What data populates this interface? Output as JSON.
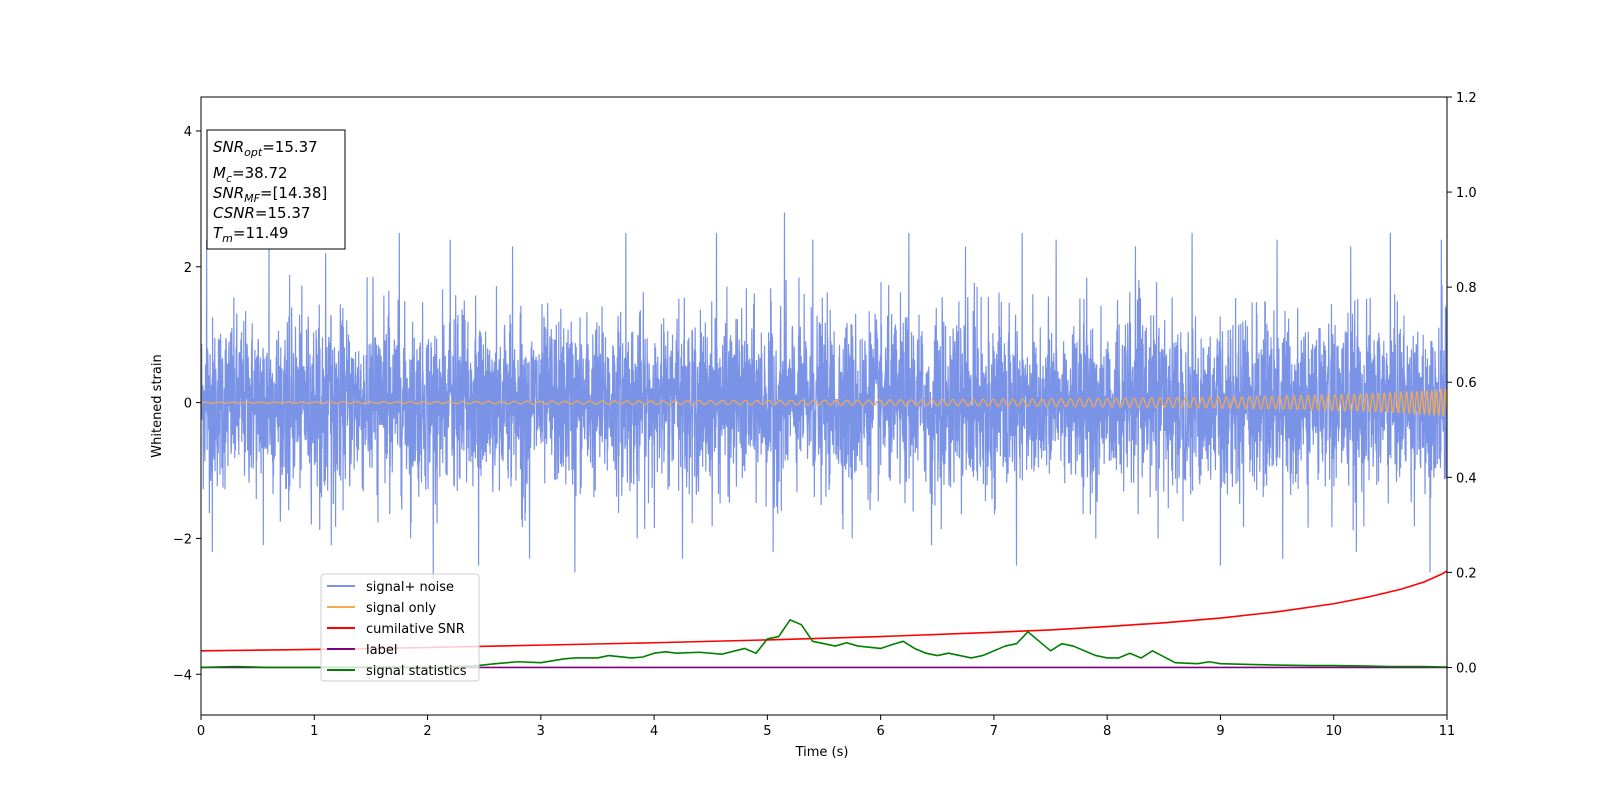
{
  "chart_data": {
    "type": "line",
    "xlabel": "Time (s)",
    "ylabel": "Whitened strain",
    "xlim": [
      0,
      11
    ],
    "ylim": [
      -4.6,
      4.5
    ],
    "y2lim": [
      -0.1,
      1.2
    ],
    "x_ticks": [
      "0",
      "1",
      "2",
      "3",
      "4",
      "5",
      "6",
      "7",
      "8",
      "9",
      "10",
      "11"
    ],
    "y_ticks": [
      "4",
      "2",
      "0",
      "−2",
      "−4"
    ],
    "y2_ticks": [
      "1.2",
      "1.0",
      "0.8",
      "0.6",
      "0.4",
      "0.2",
      "0.0"
    ],
    "grid": false,
    "legend_position": "lower-left",
    "series": [
      {
        "name": "signal+ noise",
        "axis": "left",
        "color": "#7b93e6",
        "style": "noise",
        "envelope_upper_typical": 1.3,
        "envelope_lower_typical": -1.4,
        "spikes": [
          [
            0.05,
            2.4
          ],
          [
            0.6,
            2.3
          ],
          [
            1.1,
            2.2
          ],
          [
            1.75,
            2.5
          ],
          [
            2.2,
            2.4
          ],
          [
            2.75,
            2.3
          ],
          [
            3.3,
            2.3
          ],
          [
            3.75,
            2.5
          ],
          [
            4.25,
            2.3
          ],
          [
            4.55,
            2.5
          ],
          [
            5.15,
            2.8
          ],
          [
            5.4,
            2.4
          ],
          [
            6.25,
            2.5
          ],
          [
            6.75,
            2.3
          ],
          [
            7.25,
            2.5
          ],
          [
            7.55,
            2.4
          ],
          [
            8.25,
            2.3
          ],
          [
            8.75,
            2.5
          ],
          [
            9.5,
            2.4
          ],
          [
            10.15,
            2.3
          ],
          [
            10.5,
            2.5
          ],
          [
            10.95,
            2.4
          ],
          [
            0.1,
            -2.2
          ],
          [
            0.55,
            -2.1
          ],
          [
            1.15,
            -2.1
          ],
          [
            1.85,
            -2.0
          ],
          [
            2.05,
            -2.6
          ],
          [
            2.45,
            -2.4
          ],
          [
            2.9,
            -2.3
          ],
          [
            3.3,
            -2.5
          ],
          [
            3.85,
            -2.0
          ],
          [
            4.25,
            -2.3
          ],
          [
            5.05,
            -2.2
          ],
          [
            5.75,
            -2.0
          ],
          [
            6.45,
            -2.1
          ],
          [
            7.2,
            -2.4
          ],
          [
            7.9,
            -2.0
          ],
          [
            8.45,
            -2.0
          ],
          [
            9.0,
            -2.4
          ],
          [
            9.55,
            -2.3
          ],
          [
            10.2,
            -2.2
          ],
          [
            10.85,
            -2.5
          ]
        ]
      },
      {
        "name": "signal only",
        "axis": "left",
        "color": "#f5a950",
        "style": "chirp",
        "amplitude_start": 0.008,
        "amplitude_end": 0.2,
        "merger_time": 11.49
      },
      {
        "name": "cumilative SNR",
        "axis": "right",
        "color": "#ff0000",
        "x": [
          0,
          1,
          2,
          3,
          4,
          5,
          6,
          7,
          7.5,
          8,
          8.5,
          9,
          9.5,
          10,
          10.3,
          10.6,
          10.8,
          10.95,
          11
        ],
        "y": [
          0.035,
          0.038,
          0.042,
          0.047,
          0.052,
          0.058,
          0.065,
          0.074,
          0.079,
          0.086,
          0.094,
          0.104,
          0.117,
          0.134,
          0.148,
          0.165,
          0.18,
          0.196,
          0.203
        ]
      },
      {
        "name": "label",
        "axis": "right",
        "color": "#800080",
        "x": [
          0,
          11
        ],
        "y": [
          0.0,
          0.0
        ]
      },
      {
        "name": "signal statistics",
        "axis": "right",
        "color": "#008000",
        "x": [
          0,
          0.3,
          0.6,
          1.0,
          1.5,
          2.0,
          2.4,
          2.6,
          2.8,
          3.0,
          3.2,
          3.3,
          3.5,
          3.6,
          3.8,
          3.9,
          4.0,
          4.1,
          4.2,
          4.4,
          4.6,
          4.8,
          4.9,
          5.0,
          5.1,
          5.2,
          5.3,
          5.4,
          5.5,
          5.6,
          5.7,
          5.8,
          6.0,
          6.1,
          6.2,
          6.3,
          6.4,
          6.5,
          6.6,
          6.8,
          6.9,
          7.1,
          7.2,
          7.3,
          7.4,
          7.5,
          7.6,
          7.7,
          7.9,
          8.0,
          8.1,
          8.2,
          8.3,
          8.4,
          8.6,
          8.8,
          8.9,
          9.0,
          9.3,
          9.5,
          9.8,
          10.0,
          10.3,
          10.5,
          10.8,
          11.0
        ],
        "y": [
          0.0,
          0.002,
          0.0,
          0.0,
          0.001,
          0.0,
          0.003,
          0.008,
          0.012,
          0.01,
          0.018,
          0.02,
          0.02,
          0.025,
          0.02,
          0.022,
          0.03,
          0.033,
          0.03,
          0.032,
          0.028,
          0.04,
          0.03,
          0.06,
          0.065,
          0.1,
          0.09,
          0.055,
          0.05,
          0.045,
          0.052,
          0.045,
          0.04,
          0.048,
          0.055,
          0.04,
          0.03,
          0.025,
          0.03,
          0.02,
          0.025,
          0.045,
          0.05,
          0.075,
          0.055,
          0.035,
          0.05,
          0.045,
          0.025,
          0.02,
          0.02,
          0.03,
          0.02,
          0.035,
          0.01,
          0.008,
          0.012,
          0.008,
          0.006,
          0.005,
          0.004,
          0.004,
          0.003,
          0.002,
          0.002,
          0.001
        ]
      }
    ],
    "info_box": [
      {
        "sym": "SNR",
        "sub": "opt",
        "val": "=15.37"
      },
      {
        "sym": "M",
        "sub": "c",
        "val": "=38.72"
      },
      {
        "sym": "SNR",
        "sub": "MF",
        "val": "=[14.38]"
      },
      {
        "sym": "CSNR",
        "sub": "",
        "val": "=15.37"
      },
      {
        "sym": "T",
        "sub": "m",
        "val": "=11.49"
      }
    ]
  }
}
